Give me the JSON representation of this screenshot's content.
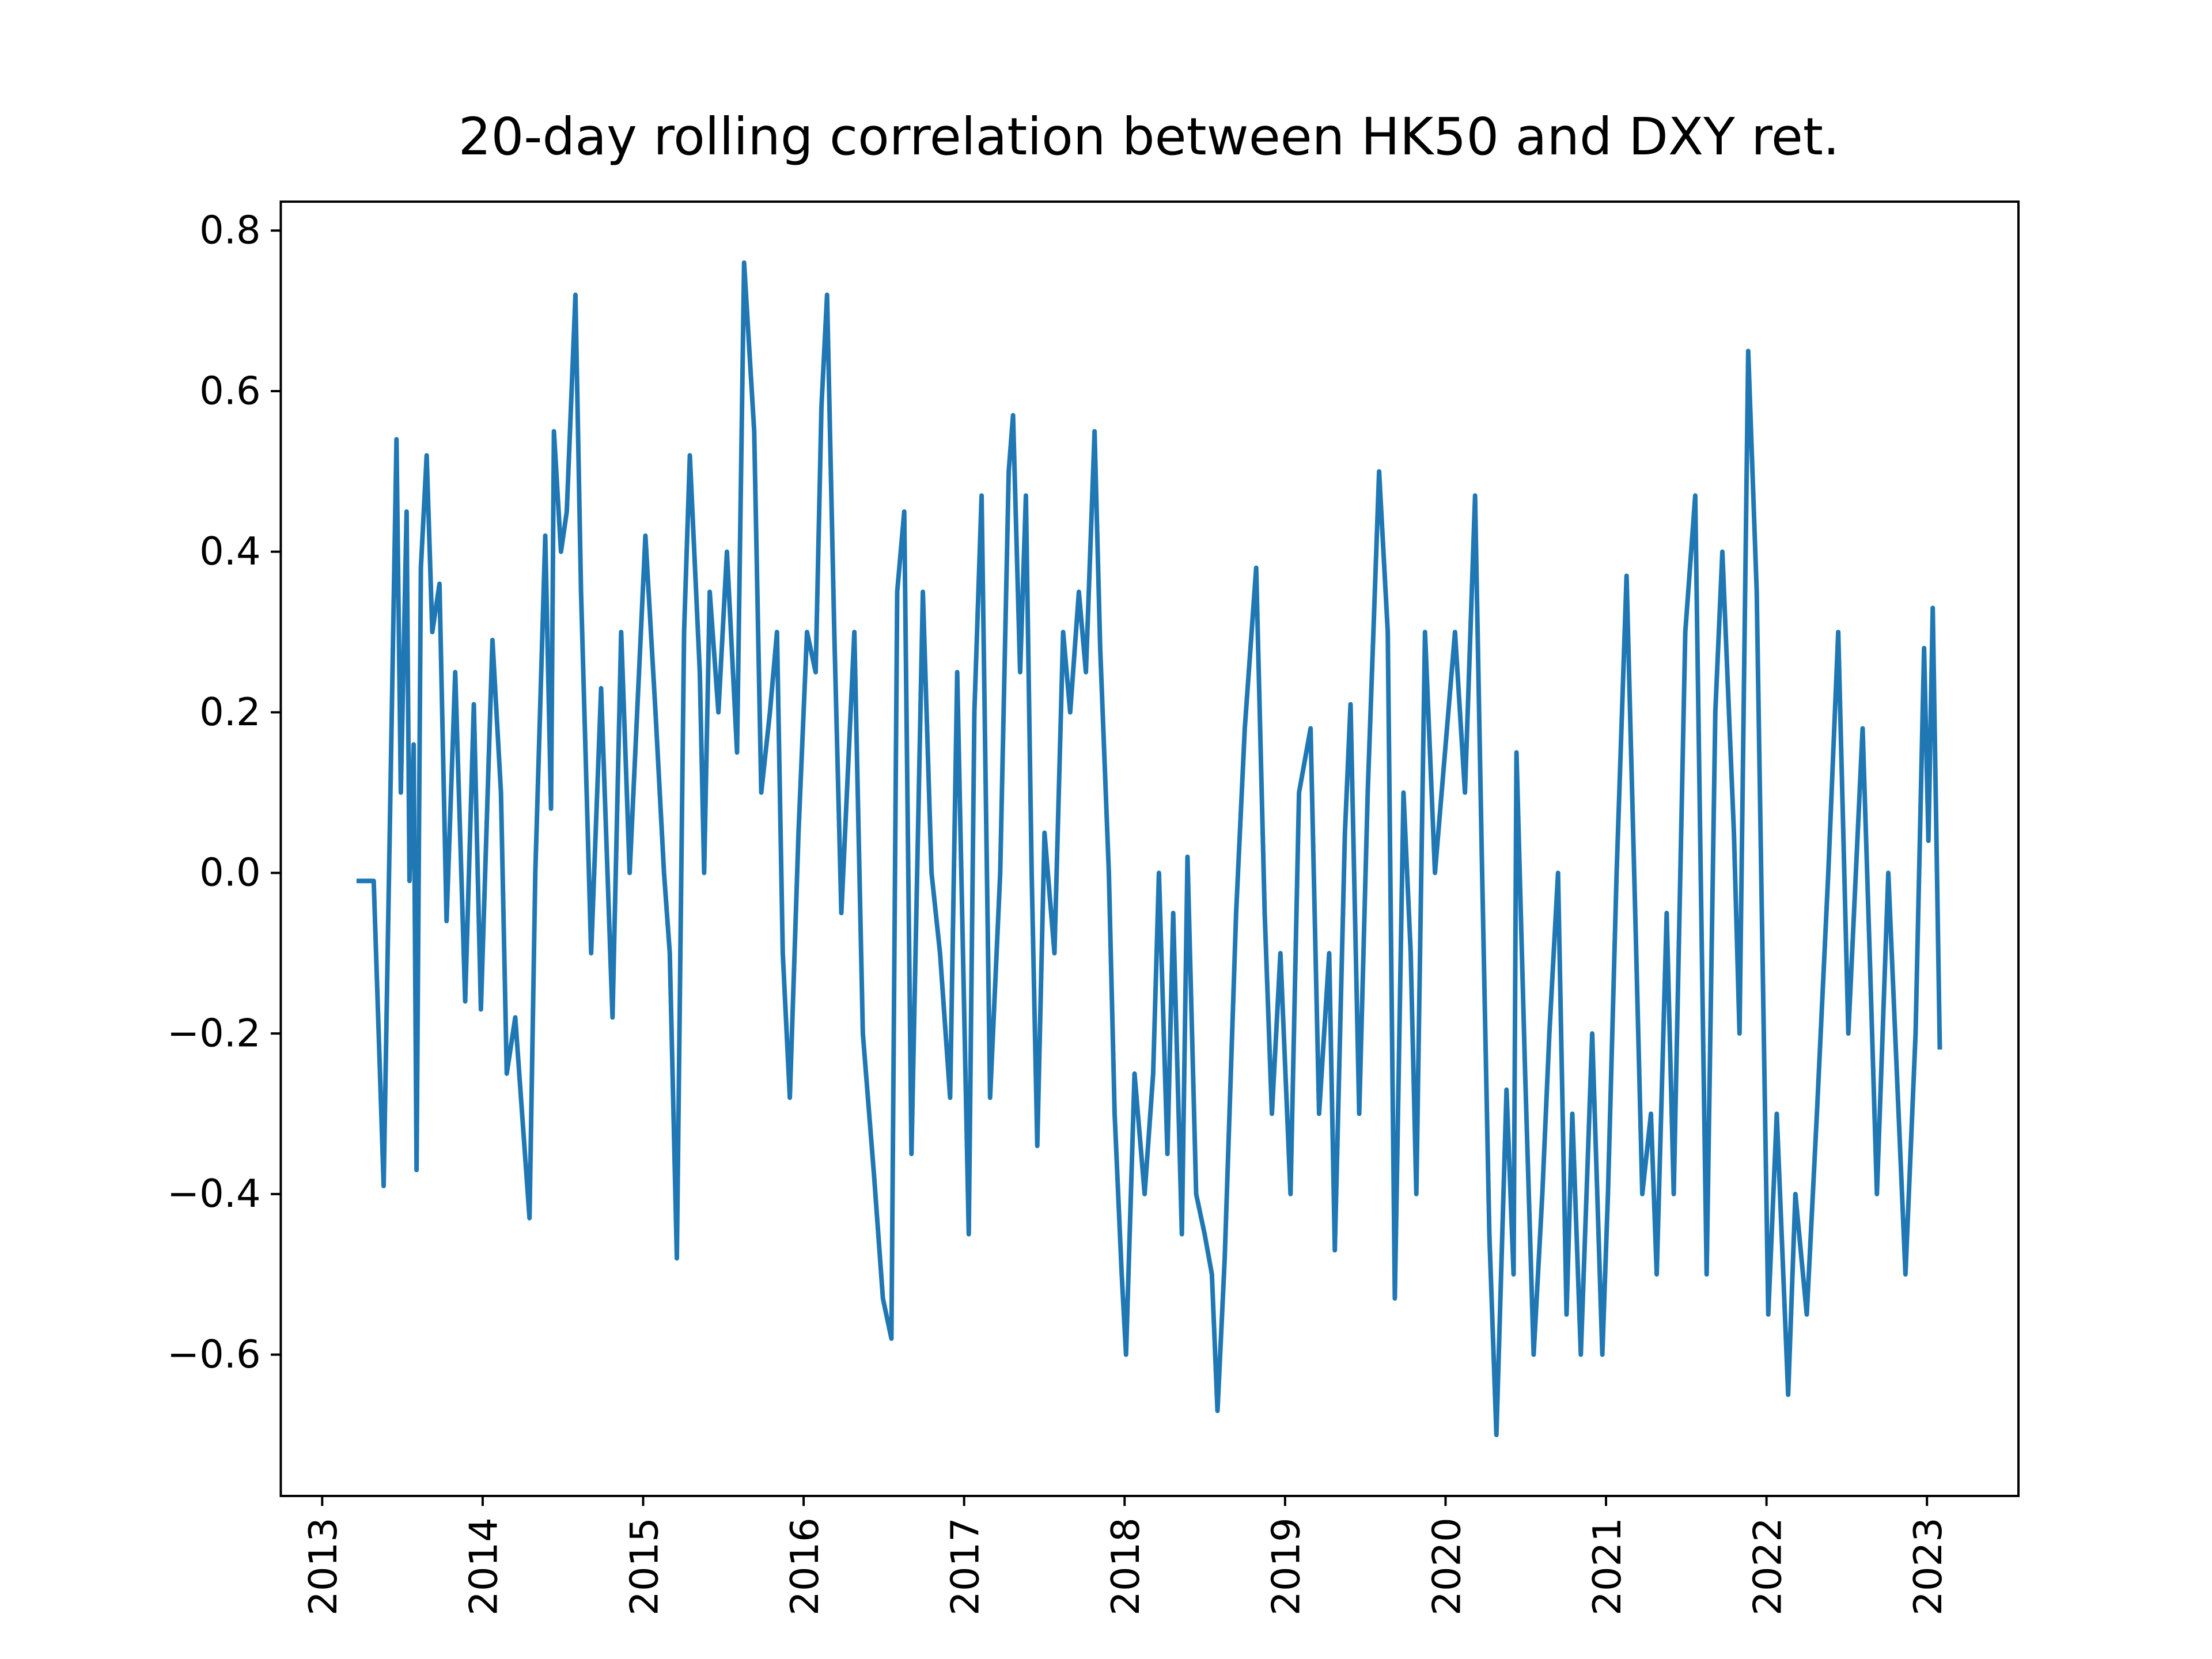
{
  "chart_data": {
    "type": "line",
    "title": "20-day rolling correlation between HK50 and DXY ret.",
    "color": "#1f77b4",
    "x": [
      2013.214,
      2013.321,
      2013.383,
      2013.463,
      2013.49,
      2013.526,
      2013.544,
      2013.57,
      2013.588,
      2013.615,
      2013.651,
      2013.686,
      2013.731,
      2013.775,
      2013.829,
      2013.891,
      2013.945,
      2013.989,
      2014.061,
      2014.114,
      2014.15,
      2014.203,
      2014.292,
      2014.328,
      2014.39,
      2014.426,
      2014.444,
      2014.488,
      2014.524,
      2014.578,
      2014.613,
      2014.676,
      2014.738,
      2014.809,
      2014.863,
      2014.916,
      2015.014,
      2015.077,
      2015.13,
      2015.166,
      2015.21,
      2015.255,
      2015.291,
      2015.353,
      2015.38,
      2015.415,
      2015.469,
      2015.522,
      2015.585,
      2015.629,
      2015.692,
      2015.736,
      2015.79,
      2015.834,
      2015.87,
      2015.914,
      2015.968,
      2016.021,
      2016.075,
      2016.111,
      2016.146,
      2016.191,
      2016.235,
      2016.316,
      2016.369,
      2016.44,
      2016.494,
      2016.547,
      2016.583,
      2016.627,
      2016.672,
      2016.743,
      2016.797,
      2016.85,
      2016.913,
      2016.957,
      2017.029,
      2017.064,
      2017.109,
      2017.162,
      2017.225,
      2017.278,
      2017.305,
      2017.349,
      2017.385,
      2017.421,
      2017.456,
      2017.501,
      2017.563,
      2017.617,
      2017.661,
      2017.715,
      2017.759,
      2017.813,
      2017.848,
      2017.902,
      2017.938,
      2017.982,
      2018.009,
      2018.062,
      2018.125,
      2018.178,
      2018.214,
      2018.267,
      2018.303,
      2018.357,
      2018.392,
      2018.446,
      2018.499,
      2018.544,
      2018.579,
      2018.624,
      2018.695,
      2018.749,
      2018.82,
      2018.873,
      2018.918,
      2018.971,
      2019.034,
      2019.087,
      2019.159,
      2019.212,
      2019.275,
      2019.31,
      2019.373,
      2019.408,
      2019.462,
      2019.515,
      2019.586,
      2019.64,
      2019.684,
      2019.738,
      2019.783,
      2019.818,
      2019.872,
      2019.934,
      2020.059,
      2020.121,
      2020.184,
      2020.228,
      2020.273,
      2020.317,
      2020.38,
      2020.424,
      2020.442,
      2020.496,
      2020.549,
      2020.603,
      2020.647,
      2020.701,
      2020.754,
      2020.79,
      2020.843,
      2020.914,
      2020.977,
      2021.012,
      2021.066,
      2021.128,
      2021.182,
      2021.226,
      2021.28,
      2021.316,
      2021.378,
      2021.422,
      2021.494,
      2021.556,
      2021.601,
      2021.627,
      2021.681,
      2021.725,
      2021.797,
      2021.832,
      2021.886,
      2021.939,
      2022.011,
      2022.064,
      2022.135,
      2022.18,
      2022.251,
      2022.314,
      2022.385,
      2022.447,
      2022.51,
      2022.599,
      2022.643,
      2022.688,
      2022.759,
      2022.866,
      2022.929,
      2022.982,
      2023.009,
      2023.036,
      2023.08
    ],
    "values": [
      -0.01,
      -0.01,
      -0.39,
      0.54,
      0.1,
      0.45,
      -0.01,
      0.16,
      -0.37,
      0.38,
      0.52,
      0.3,
      0.36,
      -0.06,
      0.25,
      -0.16,
      0.21,
      -0.17,
      0.29,
      0.1,
      -0.25,
      -0.18,
      -0.43,
      0.0,
      0.42,
      0.08,
      0.55,
      0.4,
      0.45,
      0.72,
      0.35,
      -0.1,
      0.23,
      -0.18,
      0.3,
      0.0,
      0.42,
      0.2,
      0.0,
      -0.1,
      -0.48,
      0.3,
      0.52,
      0.25,
      0.0,
      0.35,
      0.2,
      0.4,
      0.15,
      0.76,
      0.55,
      0.1,
      0.2,
      0.3,
      -0.1,
      -0.28,
      0.05,
      0.3,
      0.25,
      0.58,
      0.72,
      0.3,
      -0.05,
      0.3,
      -0.2,
      -0.38,
      -0.53,
      -0.58,
      0.35,
      0.45,
      -0.35,
      0.35,
      0.0,
      -0.1,
      -0.28,
      0.25,
      -0.45,
      0.2,
      0.47,
      -0.28,
      0.0,
      0.5,
      0.57,
      0.25,
      0.47,
      0.0,
      -0.34,
      0.05,
      -0.1,
      0.3,
      0.2,
      0.35,
      0.25,
      0.55,
      0.28,
      0.0,
      -0.3,
      -0.5,
      -0.6,
      -0.25,
      -0.4,
      -0.25,
      0.0,
      -0.35,
      -0.05,
      -0.45,
      0.02,
      -0.4,
      -0.45,
      -0.5,
      -0.67,
      -0.48,
      -0.05,
      0.18,
      0.38,
      -0.05,
      -0.3,
      -0.1,
      -0.4,
      0.1,
      0.18,
      -0.3,
      -0.1,
      -0.47,
      0.05,
      0.21,
      -0.3,
      0.1,
      0.5,
      0.3,
      -0.53,
      0.1,
      -0.1,
      -0.4,
      0.3,
      0.0,
      0.3,
      0.1,
      0.47,
      0.0,
      -0.45,
      -0.7,
      -0.27,
      -0.5,
      0.15,
      -0.25,
      -0.6,
      -0.4,
      -0.2,
      0.0,
      -0.55,
      -0.3,
      -0.6,
      -0.2,
      -0.6,
      -0.4,
      0.0,
      0.37,
      -0.05,
      -0.4,
      -0.3,
      -0.5,
      -0.05,
      -0.4,
      0.3,
      0.47,
      -0.15,
      -0.5,
      0.2,
      0.4,
      0.05,
      -0.2,
      0.65,
      0.35,
      -0.55,
      -0.3,
      -0.65,
      -0.4,
      -0.55,
      -0.3,
      0.0,
      0.3,
      -0.2,
      0.18,
      -0.1,
      -0.4,
      0.0,
      -0.5,
      -0.2,
      0.28,
      0.04,
      0.33,
      -0.22
    ],
    "xlim": [
      2012.742,
      2023.57
    ],
    "ylim": [
      -0.776,
      0.836
    ],
    "xticks": [
      2013,
      2014,
      2015,
      2016,
      2017,
      2018,
      2019,
      2020,
      2021,
      2022,
      2023
    ],
    "yticks": [
      {
        "value": -0.6,
        "label": "−0.6"
      },
      {
        "value": -0.4,
        "label": "−0.4"
      },
      {
        "value": -0.2,
        "label": "−0.2"
      },
      {
        "value": 0.0,
        "label": "0.0"
      },
      0.2,
      0.4,
      0.6,
      0.8
    ]
  }
}
